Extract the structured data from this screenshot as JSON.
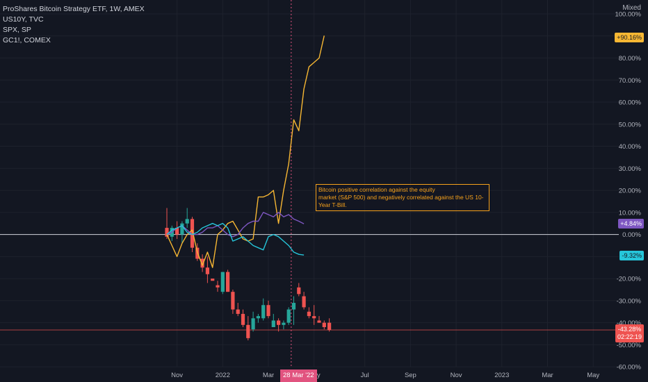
{
  "legend": {
    "main": "ProShares Bitcoin Strategy ETF, 1W, AMEX",
    "s1": "US10Y, TVC",
    "s2": "SPX, SP",
    "s3": "GC1!, COMEX"
  },
  "scale_mode": "Mixed",
  "annotation": {
    "line1": "Bitcoin positive correlation against the equity",
    "line2": "market (S&P 500) and negatively correlated against the US 10-Year T-Bill."
  },
  "badges": {
    "us10y": "+90.16%",
    "spx": "+4.84%",
    "gold": "-9.32%",
    "bito": "-43.28%",
    "bito_timer": "02:22:19"
  },
  "crosshair_label": "28 Mar '22",
  "colors": {
    "background": "#131722",
    "us10y": "#f7b733",
    "spx": "#7e57c2",
    "gold": "#26c6da",
    "up": "#26a69a",
    "down": "#ef5350",
    "zero_line": "#d1d4dc",
    "crosshair": "#e1537f"
  },
  "chart_data": {
    "type": "line",
    "y_unit": "%",
    "ylim": [
      -60,
      100
    ],
    "y_ticks": [
      "100.00%",
      "80.00%",
      "70.00%",
      "60.00%",
      "50.00%",
      "40.00%",
      "30.00%",
      "20.00%",
      "10.00%",
      "0.00%",
      "-20.00%",
      "-30.00%",
      "-40.00%",
      "-50.00%",
      "-60.00%"
    ],
    "y_tick_values": [
      100,
      80,
      70,
      60,
      50,
      40,
      30,
      20,
      10,
      0,
      -20,
      -30,
      -40,
      -50,
      -60
    ],
    "x_ticks": [
      "Nov",
      "2022",
      "Mar",
      "May",
      "Jul",
      "Sep",
      "Nov",
      "2023",
      "Mar",
      "May"
    ],
    "x_tick_weeks": [
      2,
      11,
      20,
      29,
      39,
      48,
      57,
      66,
      75,
      84
    ],
    "crosshair_week": 24.5,
    "series": [
      {
        "name": "US10Y, TVC",
        "key": "us10y",
        "values": [
          0,
          -5,
          -10,
          -4,
          0,
          2,
          -8,
          -14,
          -8,
          -15,
          0,
          2,
          5,
          6,
          2,
          -2,
          -3,
          -2,
          17,
          17,
          18,
          20,
          5,
          20,
          32,
          52,
          47,
          66,
          76,
          78,
          80,
          90.16
        ]
      },
      {
        "name": "SPX, SP",
        "key": "spx",
        "values": [
          0,
          1,
          3,
          4,
          2,
          0,
          0,
          1,
          3,
          3,
          4,
          2,
          0,
          -1,
          0,
          3,
          5,
          6,
          6,
          10,
          9,
          8,
          10,
          8,
          9,
          7,
          6,
          4.84
        ]
      },
      {
        "name": "GC1!, COMEX",
        "key": "gold",
        "values": [
          0,
          2,
          3,
          4,
          1,
          0,
          1,
          3,
          4,
          5,
          4,
          5,
          3,
          -3,
          -2,
          -1,
          -3,
          -5,
          -6,
          -7,
          -1,
          0,
          -1,
          -3,
          -5,
          -8,
          -9,
          -9.32
        ]
      }
    ],
    "candles": [
      {
        "o": 3,
        "h": 12,
        "l": -2,
        "c": -1
      },
      {
        "o": -1,
        "h": 4,
        "l": -3,
        "c": 3
      },
      {
        "o": 3,
        "h": 6,
        "l": -2,
        "c": 0
      },
      {
        "o": 0,
        "h": 6,
        "l": -4,
        "c": 5
      },
      {
        "o": 5,
        "h": 12,
        "l": 3,
        "c": 7
      },
      {
        "o": 7,
        "h": 8,
        "l": -8,
        "c": -6
      },
      {
        "o": -6,
        "h": -4,
        "l": -12,
        "c": -11
      },
      {
        "o": -11,
        "h": -9,
        "l": -17,
        "c": -15
      },
      {
        "o": -15,
        "h": -10,
        "l": -22,
        "c": -18
      },
      {
        "o": -20,
        "h": -20,
        "l": -20,
        "c": -21
      },
      {
        "o": -23,
        "h": -21,
        "l": -26,
        "c": -24
      },
      {
        "o": -26,
        "h": -17,
        "l": -27,
        "c": -17
      },
      {
        "o": -17,
        "h": -16,
        "l": -26,
        "c": -26
      },
      {
        "o": -26,
        "h": -25,
        "l": -36,
        "c": -34
      },
      {
        "o": -34,
        "h": -31,
        "l": -37,
        "c": -36
      },
      {
        "o": -36,
        "h": -34,
        "l": -42,
        "c": -41
      },
      {
        "o": -41,
        "h": -37,
        "l": -48,
        "c": -47
      },
      {
        "o": -43,
        "h": -35,
        "l": -44,
        "c": -38
      },
      {
        "o": -38,
        "h": -36,
        "l": -40,
        "c": -37
      },
      {
        "o": -38,
        "h": -29,
        "l": -39,
        "c": -32
      },
      {
        "o": -32,
        "h": -30,
        "l": -38,
        "c": -37
      },
      {
        "o": -42,
        "h": -36,
        "l": -42,
        "c": -39
      },
      {
        "o": -39,
        "h": -38,
        "l": -44,
        "c": -41
      },
      {
        "o": -41,
        "h": -39,
        "l": -43,
        "c": -40
      },
      {
        "o": -40,
        "h": -33,
        "l": -41,
        "c": -34
      },
      {
        "o": -34,
        "h": -28,
        "l": -41,
        "c": -31
      },
      {
        "o": -24,
        "h": -22,
        "l": -28,
        "c": -27
      },
      {
        "o": -28,
        "h": -26,
        "l": -34,
        "c": -33
      },
      {
        "o": -35,
        "h": -33,
        "l": -38,
        "c": -37
      },
      {
        "o": -37,
        "h": -32,
        "l": -41,
        "c": -38
      },
      {
        "o": -39,
        "h": -37,
        "l": -40,
        "c": -40
      },
      {
        "o": -40,
        "h": -39,
        "l": -43,
        "c": -42
      },
      {
        "o": -40,
        "h": -38,
        "l": -44,
        "c": -43.28
      }
    ]
  }
}
